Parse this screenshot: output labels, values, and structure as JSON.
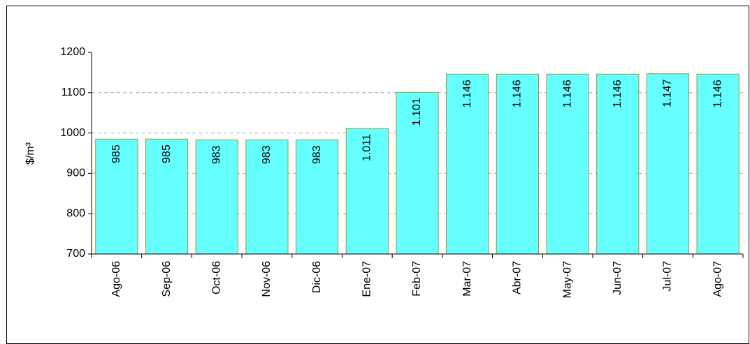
{
  "chart_data": {
    "type": "bar",
    "ylabel": "$/m³",
    "categories": [
      "Ago-06",
      "Sep-06",
      "Oct-06",
      "Nov-06",
      "Dic-06",
      "Ene-07",
      "Feb-07",
      "Mar-07",
      "Abr-07",
      "May-07",
      "Jun-07",
      "Jul-07",
      "Ago-07"
    ],
    "values": [
      985,
      985,
      983,
      983,
      983,
      1011,
      1101,
      1146,
      1146,
      1146,
      1146,
      1147,
      1146
    ],
    "value_labels": [
      "985",
      "985",
      "983",
      "983",
      "983",
      "1.011",
      "1.101",
      "1.146",
      "1.146",
      "1.146",
      "1.146",
      "1.147",
      "1.146"
    ],
    "color": "#66ffff",
    "ylim": [
      700,
      1200
    ],
    "yticks": [
      700,
      800,
      900,
      1000,
      1100,
      1200
    ],
    "grid": true
  }
}
